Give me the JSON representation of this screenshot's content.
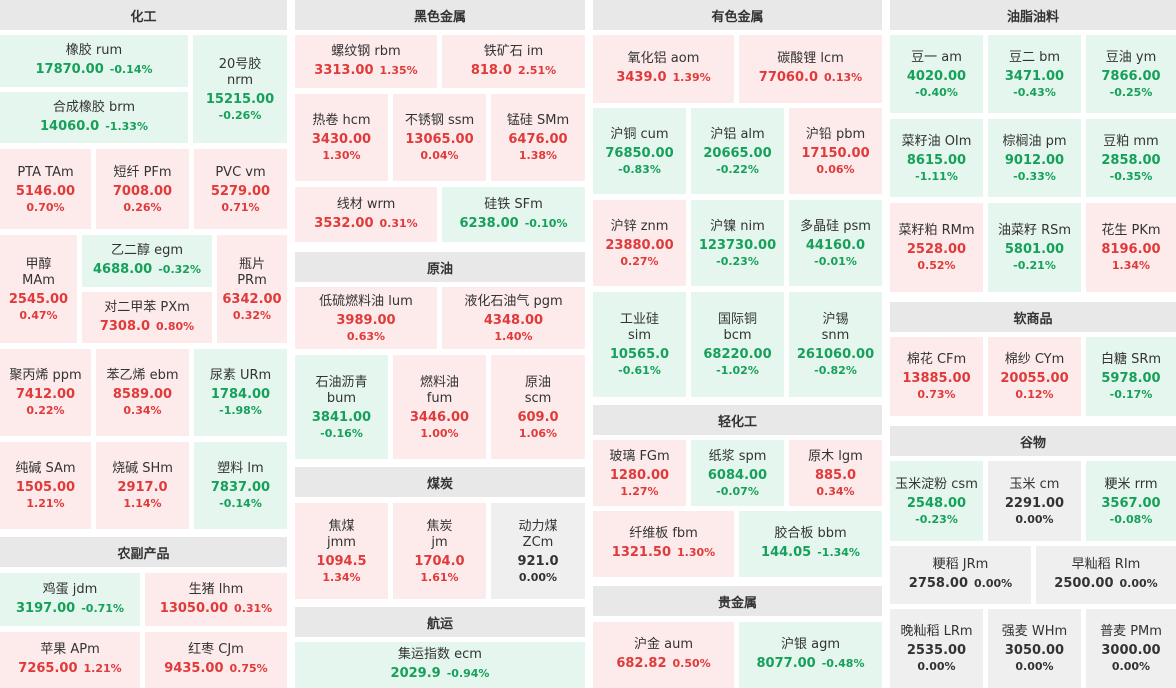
{
  "sections": {
    "chemical": "化工",
    "agri": "农副产品",
    "ferrous": "黑色金属",
    "crude": "原油",
    "coal": "煤炭",
    "shipping": "航运",
    "nonferrous": "有色金属",
    "light": "轻化工",
    "precious": "贵金属",
    "oils": "油脂油料",
    "softs": "软商品",
    "grains": "谷物"
  },
  "tiles": {
    "rum": {
      "name": "橡胶  rum",
      "price": "17870.00",
      "pct": "-0.14%",
      "dir": "down"
    },
    "nrm": {
      "name1": "20号胶",
      "name2": "nrm",
      "price": "15215.00",
      "pct": "-0.26%",
      "dir": "down"
    },
    "brm": {
      "name": "合成橡胶  brm",
      "price": "14060.0",
      "pct": "-1.33%",
      "dir": "down"
    },
    "tam": {
      "name": "PTA  TAm",
      "price": "5146.00",
      "pct": "0.70%",
      "dir": "up"
    },
    "pfm": {
      "name": "短纤  PFm",
      "price": "7008.00",
      "pct": "0.26%",
      "dir": "up"
    },
    "vm": {
      "name": "PVC  vm",
      "price": "5279.00",
      "pct": "0.71%",
      "dir": "up"
    },
    "mam": {
      "name1": "甲醇",
      "name2": "MAm",
      "price": "2545.00",
      "pct": "0.47%",
      "dir": "up"
    },
    "egm": {
      "name": "乙二醇  egm",
      "price": "4688.00",
      "pct": "-0.32%",
      "dir": "down"
    },
    "prm": {
      "name1": "瓶片",
      "name2": "PRm",
      "price": "6342.00",
      "pct": "0.32%",
      "dir": "up"
    },
    "pxm": {
      "name": "对二甲苯  PXm",
      "price": "7308.0",
      "pct": "0.80%",
      "dir": "up"
    },
    "ppm": {
      "name": "聚丙烯  ppm",
      "price": "7412.00",
      "pct": "0.22%",
      "dir": "up"
    },
    "ebm": {
      "name": "苯乙烯  ebm",
      "price": "8589.00",
      "pct": "0.34%",
      "dir": "up"
    },
    "urm": {
      "name": "尿素  URm",
      "price": "1784.00",
      "pct": "-1.98%",
      "dir": "down"
    },
    "sam": {
      "name": "纯碱  SAm",
      "price": "1505.00",
      "pct": "1.21%",
      "dir": "up"
    },
    "shm": {
      "name": "烧碱  SHm",
      "price": "2917.0",
      "pct": "1.14%",
      "dir": "up"
    },
    "lm": {
      "name": "塑料  lm",
      "price": "7837.00",
      "pct": "-0.14%",
      "dir": "down"
    },
    "jdm": {
      "name": "鸡蛋  jdm",
      "price": "3197.00",
      "pct": "-0.71%",
      "dir": "down"
    },
    "lhm": {
      "name": "生猪  lhm",
      "price": "13050.00",
      "pct": "0.31%",
      "dir": "up"
    },
    "apm": {
      "name": "苹果  APm",
      "price": "7265.00",
      "pct": "1.21%",
      "dir": "up"
    },
    "cjm": {
      "name": "红枣  CJm",
      "price": "9435.00",
      "pct": "0.75%",
      "dir": "up"
    },
    "rbm": {
      "name": "螺纹钢  rbm",
      "price": "3313.00",
      "pct": "1.35%",
      "dir": "up"
    },
    "im": {
      "name": "铁矿石  im",
      "price": "818.0",
      "pct": "2.51%",
      "dir": "up"
    },
    "hcm": {
      "name": "热卷  hcm",
      "price": "3430.00",
      "pct": "1.30%",
      "dir": "up"
    },
    "ssm": {
      "name": "不锈钢  ssm",
      "price": "13065.00",
      "pct": "0.04%",
      "dir": "up"
    },
    "smm": {
      "name": "锰硅  SMm",
      "price": "6476.00",
      "pct": "1.38%",
      "dir": "up"
    },
    "wrm": {
      "name": "线材  wrm",
      "price": "3532.00",
      "pct": "0.31%",
      "dir": "up"
    },
    "sfm": {
      "name": "硅铁  SFm",
      "price": "6238.00",
      "pct": "-0.10%",
      "dir": "down"
    },
    "lum": {
      "name": "低硫燃料油  lum",
      "price": "3989.00",
      "pct": "0.63%",
      "dir": "up"
    },
    "pgm": {
      "name": "液化石油气  pgm",
      "price": "4348.00",
      "pct": "1.40%",
      "dir": "up"
    },
    "bum": {
      "name1": "石油沥青",
      "name2": "bum",
      "price": "3841.00",
      "pct": "-0.16%",
      "dir": "down"
    },
    "fum": {
      "name1": "燃料油",
      "name2": "fum",
      "price": "3446.00",
      "pct": "1.00%",
      "dir": "up"
    },
    "scm": {
      "name1": "原油",
      "name2": "scm",
      "price": "609.0",
      "pct": "1.06%",
      "dir": "up"
    },
    "jmm": {
      "name1": "焦煤",
      "name2": "jmm",
      "price": "1094.5",
      "pct": "1.34%",
      "dir": "up"
    },
    "jm": {
      "name1": "焦炭",
      "name2": "jm",
      "price": "1704.0",
      "pct": "1.61%",
      "dir": "up"
    },
    "zcm": {
      "name1": "动力煤",
      "name2": "ZCm",
      "price": "921.0",
      "pct": "0.00%",
      "dir": "flat"
    },
    "ecm": {
      "name": "集运指数  ecm",
      "price": "2029.9",
      "pct": "-0.94%",
      "dir": "down"
    },
    "aom": {
      "name": "氧化铝  aom",
      "price": "3439.0",
      "pct": "1.39%",
      "dir": "up"
    },
    "lcm": {
      "name": "碳酸锂  lcm",
      "price": "77060.0",
      "pct": "0.13%",
      "dir": "up"
    },
    "cum": {
      "name": "沪铜  cum",
      "price": "76850.00",
      "pct": "-0.83%",
      "dir": "down"
    },
    "alm": {
      "name": "沪铝  alm",
      "price": "20665.00",
      "pct": "-0.22%",
      "dir": "down"
    },
    "pbm": {
      "name": "沪铅  pbm",
      "price": "17150.00",
      "pct": "0.06%",
      "dir": "up"
    },
    "znm": {
      "name": "沪锌  znm",
      "price": "23880.00",
      "pct": "0.27%",
      "dir": "up"
    },
    "nim": {
      "name": "沪镍  nim",
      "price": "123730.00",
      "pct": "-0.23%",
      "dir": "down"
    },
    "psm": {
      "name": "多晶硅  psm",
      "price": "44160.0",
      "pct": "-0.01%",
      "dir": "down"
    },
    "sim": {
      "name1": "工业硅",
      "name2": "sim",
      "price": "10565.0",
      "pct": "-0.61%",
      "dir": "down"
    },
    "bcm": {
      "name1": "国际铜",
      "name2": "bcm",
      "price": "68220.00",
      "pct": "-1.02%",
      "dir": "down"
    },
    "snm": {
      "name1": "沪锡",
      "name2": "snm",
      "price": "261060.00",
      "pct": "-0.82%",
      "dir": "down"
    },
    "fgm": {
      "name": "玻璃  FGm",
      "price": "1280.00",
      "pct": "1.27%",
      "dir": "up"
    },
    "spm": {
      "name": "纸浆  spm",
      "price": "6084.00",
      "pct": "-0.07%",
      "dir": "down"
    },
    "lgm": {
      "name": "原木  lgm",
      "price": "885.0",
      "pct": "0.34%",
      "dir": "up"
    },
    "fbm": {
      "name": "纤维板  fbm",
      "price": "1321.50",
      "pct": "1.30%",
      "dir": "up"
    },
    "bbm": {
      "name": "胶合板  bbm",
      "price": "144.05",
      "pct": "-1.34%",
      "dir": "down"
    },
    "aum": {
      "name": "沪金  aum",
      "price": "682.82",
      "pct": "0.50%",
      "dir": "up"
    },
    "agm": {
      "name": "沪银  agm",
      "price": "8077.00",
      "pct": "-0.48%",
      "dir": "down"
    },
    "am": {
      "name": "豆一  am",
      "price": "4020.00",
      "pct": "-0.40%",
      "dir": "down"
    },
    "bm": {
      "name": "豆二  bm",
      "price": "3471.00",
      "pct": "-0.43%",
      "dir": "down"
    },
    "ym": {
      "name": "豆油  ym",
      "price": "7866.00",
      "pct": "-0.25%",
      "dir": "down"
    },
    "olm": {
      "name": "菜籽油  OIm",
      "price": "8615.00",
      "pct": "-1.11%",
      "dir": "down"
    },
    "pm": {
      "name": "棕榈油  pm",
      "price": "9012.00",
      "pct": "-0.33%",
      "dir": "down"
    },
    "mm": {
      "name": "豆粕  mm",
      "price": "2858.00",
      "pct": "-0.35%",
      "dir": "down"
    },
    "rmm": {
      "name": "菜籽粕  RMm",
      "price": "2528.00",
      "pct": "0.52%",
      "dir": "up"
    },
    "rsm": {
      "name": "油菜籽  RSm",
      "price": "5801.00",
      "pct": "-0.21%",
      "dir": "down"
    },
    "pkm": {
      "name": "花生  PKm",
      "price": "8196.00",
      "pct": "1.34%",
      "dir": "up"
    },
    "cfm": {
      "name": "棉花  CFm",
      "price": "13885.00",
      "pct": "0.73%",
      "dir": "up"
    },
    "cym": {
      "name": "棉纱  CYm",
      "price": "20055.00",
      "pct": "0.12%",
      "dir": "up"
    },
    "srm": {
      "name": "白糖  SRm",
      "price": "5978.00",
      "pct": "-0.17%",
      "dir": "down"
    },
    "csm": {
      "name": "玉米淀粉  csm",
      "price": "2548.00",
      "pct": "-0.23%",
      "dir": "down"
    },
    "cm": {
      "name": "玉米  cm",
      "price": "2291.00",
      "pct": "0.00%",
      "dir": "flat"
    },
    "rrm": {
      "name": "粳米  rrm",
      "price": "3567.00",
      "pct": "-0.08%",
      "dir": "down"
    },
    "jrm": {
      "name": "粳稻  JRm",
      "price": "2758.00",
      "pct": "0.00%",
      "dir": "flat"
    },
    "rim": {
      "name": "早籼稻  RIm",
      "price": "2500.00",
      "pct": "0.00%",
      "dir": "flat"
    },
    "lrm": {
      "name": "晚籼稻  LRm",
      "price": "2535.00",
      "pct": "0.00%",
      "dir": "flat"
    },
    "whm": {
      "name": "强麦  WHm",
      "price": "3050.00",
      "pct": "0.00%",
      "dir": "flat"
    },
    "pmm": {
      "name": "普麦  PMm",
      "price": "3000.00",
      "pct": "0.00%",
      "dir": "flat"
    }
  }
}
